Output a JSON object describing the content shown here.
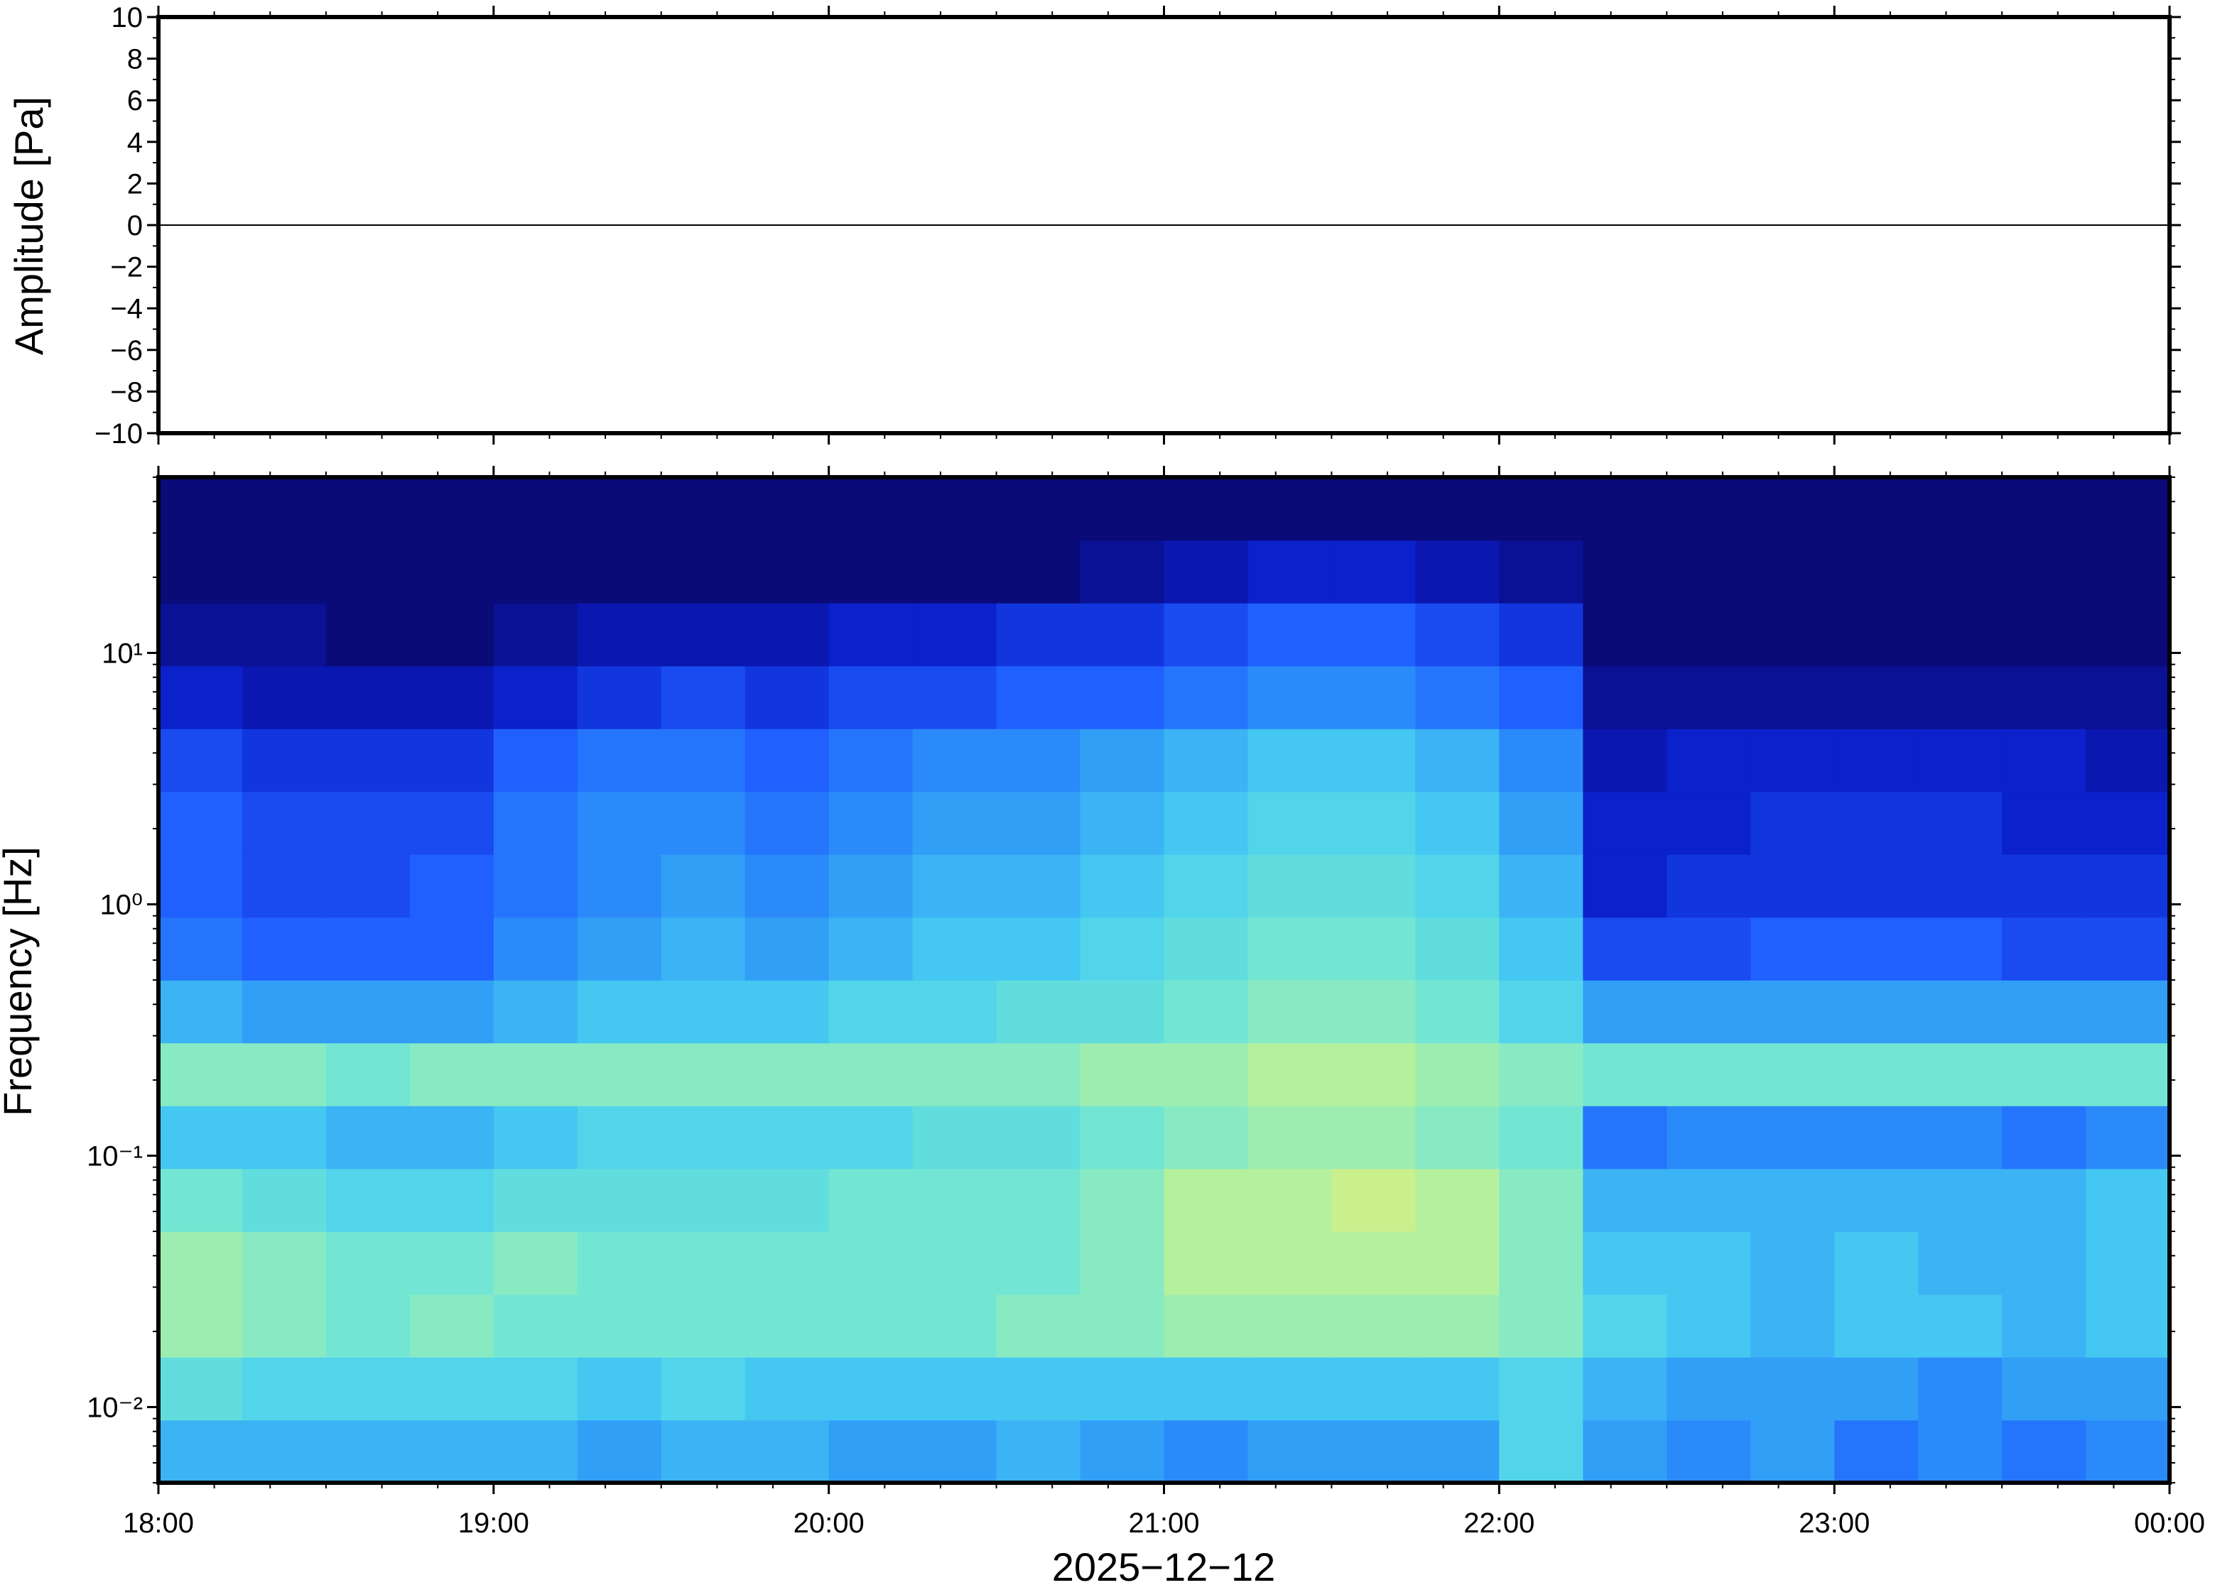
{
  "chart_data": [
    {
      "type": "line",
      "ylabel": "Amplitude [Pa]",
      "x": [
        18,
        18.25,
        18.5,
        18.75,
        19,
        19.25,
        19.5,
        19.75,
        20,
        20.25,
        20.5,
        20.75,
        21,
        21.25,
        21.5,
        21.75,
        22,
        22.25,
        22.5,
        22.75,
        23,
        23.25,
        23.5,
        23.75,
        24
      ],
      "values": [
        0,
        0,
        0,
        0,
        0,
        0,
        0,
        0,
        0,
        0,
        0,
        0,
        0,
        0,
        0,
        0,
        0,
        0,
        0,
        0,
        0,
        0,
        0,
        0,
        0
      ],
      "color": "#000000",
      "xlim": [
        18,
        24
      ],
      "ylim": [
        -10,
        10
      ],
      "yticks": [
        {
          "value": -10,
          "label": "−10"
        },
        {
          "value": -8,
          "label": "−8"
        },
        {
          "value": -6,
          "label": "−6"
        },
        {
          "value": -4,
          "label": "−4"
        },
        {
          "value": -2,
          "label": "−2"
        },
        0,
        2,
        4,
        6,
        8,
        10
      ]
    },
    {
      "type": "heatmap",
      "ylabel": "Frequency [Hz]",
      "xlabel": "2025−12−12",
      "log_y": true,
      "xlim": [
        18,
        24
      ],
      "ylim": [
        0.005,
        50
      ],
      "xticks": [
        {
          "value": 18,
          "label": "18:00"
        },
        {
          "value": 19,
          "label": "19:00"
        },
        {
          "value": 20,
          "label": "20:00"
        },
        {
          "value": 21,
          "label": "21:00"
        },
        {
          "value": 22,
          "label": "22:00"
        },
        {
          "value": 23,
          "label": "23:00"
        },
        {
          "value": 24,
          "label": "00:00"
        }
      ],
      "yticks": [
        {
          "value": 0.01,
          "label": "10⁻²"
        },
        {
          "value": 0.1,
          "label": "10⁻¹"
        },
        {
          "value": 1,
          "label": "10⁰"
        },
        {
          "value": 10,
          "label": "10¹"
        }
      ],
      "colormap": [
        "#0a0a78",
        "#0a1ec8",
        "#1e5aff",
        "#2e96f8",
        "#48d0f0",
        "#78e8d0",
        "#b8f09a",
        "#f0f070"
      ],
      "zlim": [
        0,
        10
      ],
      "x": [
        18.125,
        18.375,
        18.625,
        18.875,
        19.125,
        19.375,
        19.625,
        19.875,
        20.125,
        20.375,
        20.625,
        20.875,
        21.125,
        21.375,
        21.625,
        21.875,
        22.125,
        22.375,
        22.625,
        22.875,
        23.125,
        23.375,
        23.625,
        23.875
      ],
      "y": [
        0.00667,
        0.01186,
        0.0211,
        0.0375,
        0.0667,
        0.1186,
        0.211,
        0.375,
        0.667,
        1.186,
        2.11,
        3.75,
        6.67,
        11.86,
        21.1,
        37.5
      ],
      "z": [
        [
          5,
          5,
          5,
          5,
          5,
          4.5,
          5,
          5,
          4.5,
          4.5,
          5,
          4.5,
          4,
          4.5,
          4.5,
          4.5,
          6,
          4.5,
          4,
          4.5,
          3.5,
          4,
          3.5,
          4
        ],
        [
          6.5,
          6,
          6,
          6,
          6,
          5.5,
          6,
          5.5,
          5.5,
          5.5,
          5.5,
          5.5,
          5.5,
          5.5,
          5.5,
          5.5,
          6,
          5,
          4.5,
          4.5,
          4.5,
          4,
          4.5,
          4.5
        ],
        [
          8,
          7.5,
          7,
          7.5,
          7,
          7,
          7,
          7,
          7,
          7,
          7.5,
          7.5,
          8,
          8,
          8,
          8,
          7.5,
          6,
          5.5,
          5,
          5.5,
          5.5,
          5,
          5.5
        ],
        [
          8,
          7.5,
          7,
          7,
          7.5,
          7,
          7,
          7,
          7,
          7,
          7,
          7.5,
          8.5,
          8.5,
          8.5,
          8.5,
          7.5,
          5.5,
          5.5,
          5,
          5.5,
          5,
          5,
          5.5
        ],
        [
          7,
          6.5,
          6,
          6,
          6.5,
          6.5,
          6.5,
          6.5,
          7,
          7,
          7,
          7.5,
          8.5,
          8.5,
          9,
          8.5,
          7.5,
          5,
          5,
          5,
          5,
          5,
          5,
          5.5
        ],
        [
          5.5,
          5.5,
          5,
          5,
          5.5,
          6,
          6,
          6,
          6,
          6.5,
          6.5,
          7,
          7.5,
          8,
          8,
          7.5,
          7,
          3.5,
          4,
          4,
          4,
          4,
          3.5,
          4
        ],
        [
          7.5,
          7.5,
          7,
          7.5,
          7.5,
          7.5,
          7.5,
          7.5,
          7.5,
          7.5,
          7.5,
          8,
          8,
          8.5,
          8.5,
          8,
          7.5,
          7,
          7,
          7,
          7,
          7,
          7,
          7
        ],
        [
          5,
          4.5,
          4.5,
          4.5,
          5,
          5.5,
          5.5,
          5.5,
          6,
          6,
          6.5,
          6.5,
          7,
          7.5,
          7.5,
          7,
          6,
          4.5,
          4.5,
          4.5,
          4.5,
          4.5,
          4.5,
          4.5
        ],
        [
          3.5,
          3,
          3,
          3,
          4,
          4.5,
          5,
          4.5,
          5,
          5.5,
          5.5,
          6,
          6.5,
          7,
          7,
          6.5,
          5.5,
          2.5,
          2.5,
          3,
          3,
          3,
          2.5,
          2.5
        ],
        [
          3,
          2.5,
          2.5,
          3,
          3.5,
          4,
          4.5,
          4,
          4.5,
          5,
          5,
          5.5,
          6,
          6.5,
          6.5,
          6,
          5,
          1.5,
          2,
          2,
          2,
          2,
          2,
          2
        ],
        [
          3,
          2.5,
          2.5,
          2.5,
          3.5,
          4,
          4,
          3.5,
          4,
          4.5,
          4.5,
          5,
          5.5,
          6,
          6,
          5.5,
          4.5,
          1.5,
          1.5,
          2,
          2,
          2,
          1.5,
          1.5
        ],
        [
          2.5,
          2,
          2,
          2,
          3,
          3.5,
          3.5,
          3,
          3.5,
          4,
          4,
          4.5,
          5,
          5.5,
          5.5,
          5,
          4,
          1,
          1.5,
          1.5,
          1.5,
          1.5,
          1.5,
          1
        ],
        [
          1.5,
          1,
          1,
          1,
          1.5,
          2,
          2.5,
          2,
          2.5,
          2.5,
          3,
          3,
          3.5,
          4,
          4,
          3.5,
          3,
          0.5,
          0.5,
          0.5,
          0.5,
          0.5,
          0.5,
          0.5
        ],
        [
          0.5,
          0.5,
          0,
          0,
          0.5,
          1,
          1,
          1,
          1.5,
          1.5,
          2,
          2,
          2.5,
          3,
          3,
          2.5,
          2,
          0,
          0,
          0,
          0,
          0,
          0,
          0
        ],
        [
          0,
          0,
          0,
          0,
          0,
          0,
          0,
          0,
          0,
          0,
          0,
          0.5,
          1,
          1.5,
          1.5,
          1,
          0.5,
          0,
          0,
          0,
          0,
          0,
          0,
          0
        ],
        [
          0,
          0,
          0,
          0,
          0,
          0,
          0,
          0,
          0,
          0,
          0,
          0,
          0,
          0,
          0,
          0,
          0,
          0,
          0,
          0,
          0,
          0,
          0,
          0
        ]
      ]
    }
  ]
}
